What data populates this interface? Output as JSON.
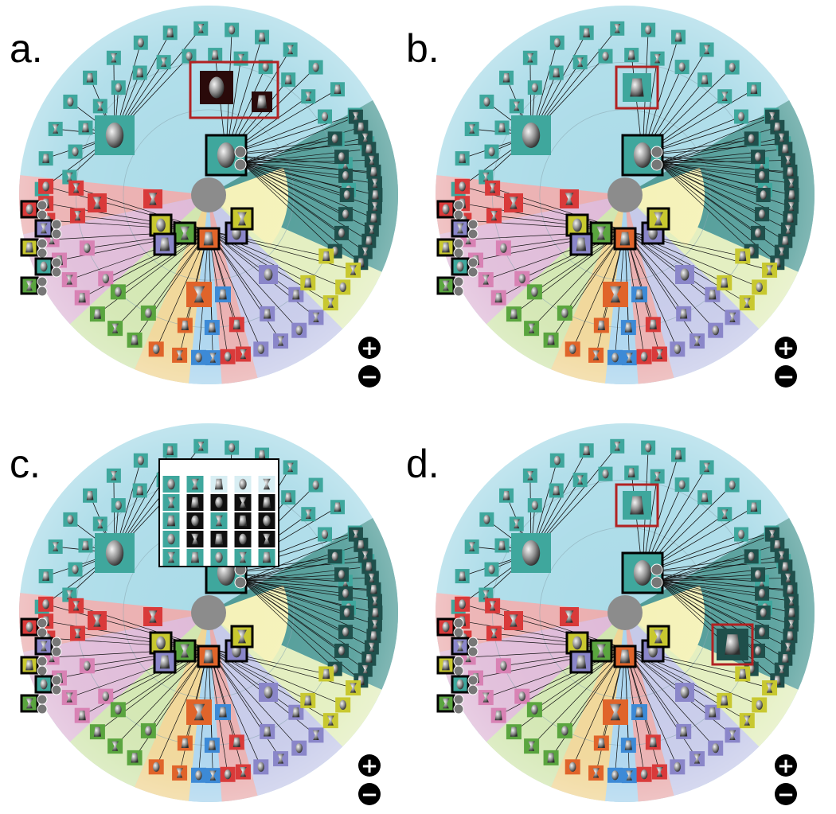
{
  "figure": {
    "panels": [
      {
        "id": "a",
        "label": "a.",
        "inner_hub_color": "#8c8c8c",
        "highlight_box_color": "#b22222",
        "expanded_selection": true,
        "show_grid_overlay": false,
        "selected_leaf_on_right": false
      },
      {
        "id": "b",
        "label": "b.",
        "inner_hub_color": "#8c8c8c",
        "highlight_box_color": "#b22222",
        "expanded_selection": false,
        "show_grid_overlay": false,
        "selected_leaf_on_right": false
      },
      {
        "id": "c",
        "label": "c.",
        "inner_hub_color": "#8c8c8c",
        "highlight_box_color": "#b22222",
        "expanded_selection": false,
        "show_grid_overlay": true,
        "selected_leaf_on_right": false
      },
      {
        "id": "d",
        "label": "d.",
        "inner_hub_color": "#8c8c8c",
        "highlight_box_color": "#b22222",
        "expanded_selection": false,
        "show_grid_overlay": false,
        "selected_leaf_on_right": true
      }
    ],
    "zoom_controls": {
      "zoom_in_icon": "plus-circle-icon",
      "zoom_out_icon": "minus-circle-icon",
      "zoom_in_glyph": "+",
      "zoom_out_glyph": "−"
    },
    "colors": {
      "sky": "#aadbe8",
      "teal_tile": "#3fa79d",
      "dark_teal_tile": "#1f4f4b",
      "red_tile": "#d93a3a",
      "orange_tile": "#e0642a",
      "purple_tile": "#8a86c9",
      "yellow_tile": "#c8c830",
      "green_tile": "#5aa53f",
      "pink_tile": "#d882b4",
      "blue_tile": "#3d8ad6"
    }
  }
}
